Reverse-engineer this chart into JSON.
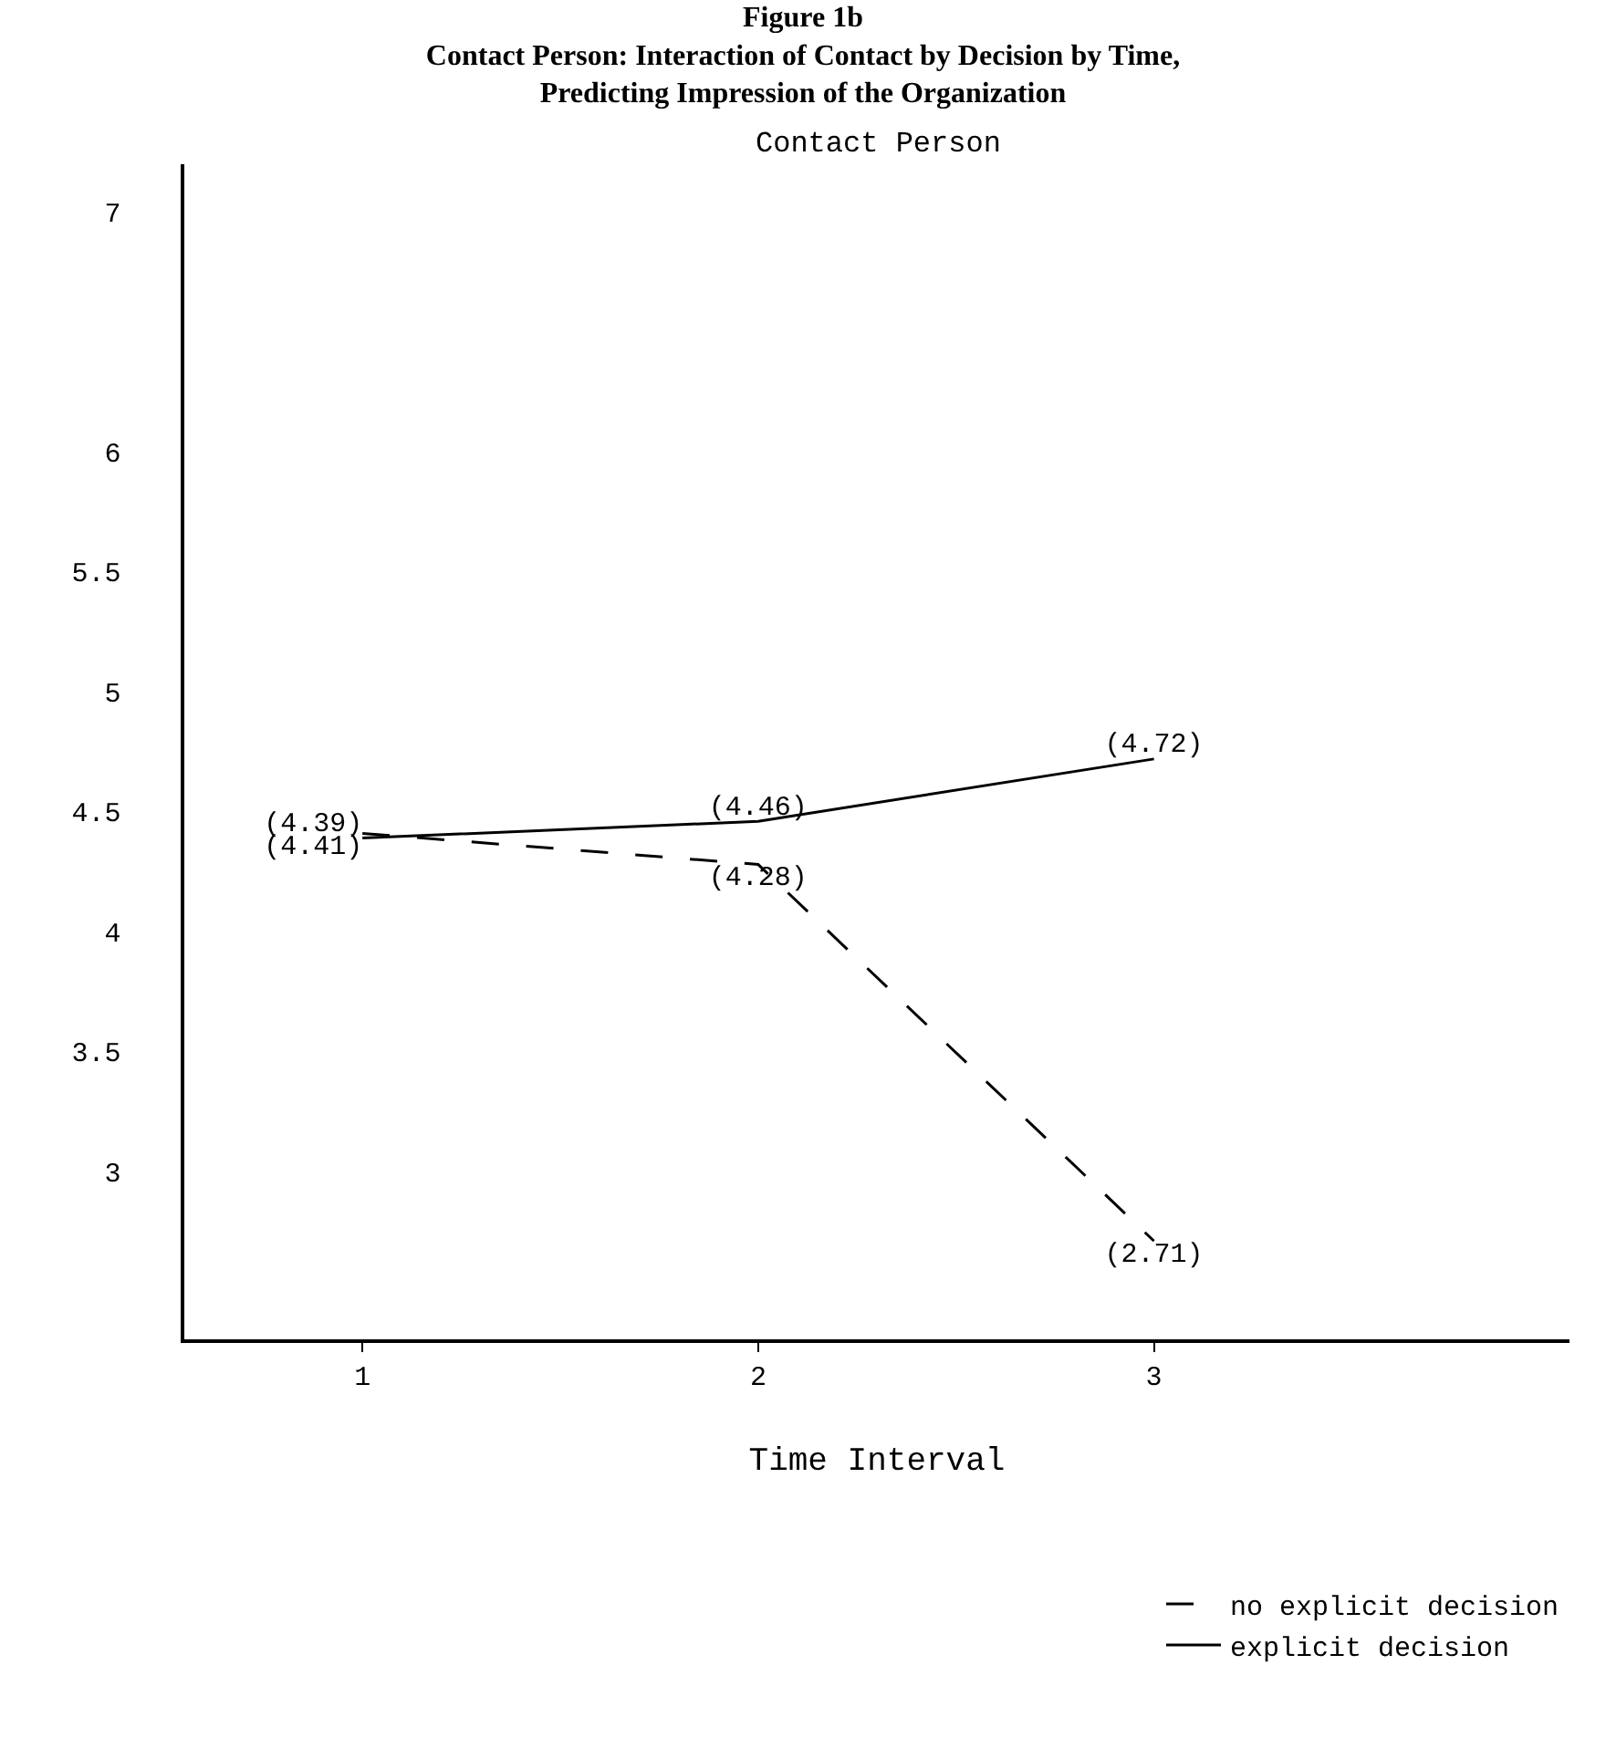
{
  "chart_data": {
    "type": "line",
    "title": "Figure 1b",
    "subtitle": "Contact Person: Interaction of Contact by Decision by Time,\nPredicting Impression of the Organization",
    "annotations": [
      "Contact Person"
    ],
    "xlabel": "Time Interval",
    "x": [
      1,
      2,
      3
    ],
    "xlim": [
      0.55,
      4.05
    ],
    "xticks": [
      1,
      2,
      3
    ],
    "ylim": [
      2.3,
      7.2
    ],
    "yticks": [
      3,
      3.5,
      4,
      4.5,
      5,
      5.5,
      6,
      7
    ],
    "series": [
      {
        "name": "no explicit decision",
        "color": "#000000",
        "line_style": "dashed",
        "values": [
          4.41,
          4.28,
          2.71
        ],
        "value_labels": [
          "(4.41)",
          "(4.28)",
          "(2.71)"
        ]
      },
      {
        "name": "explicit decision",
        "color": "#000000",
        "line_style": "solid",
        "values": [
          4.39,
          4.46,
          4.72
        ],
        "value_labels": [
          "(4.39)",
          "(4.46)",
          "(4.72)"
        ]
      }
    ],
    "marker": "none",
    "legend": "bottom right"
  }
}
